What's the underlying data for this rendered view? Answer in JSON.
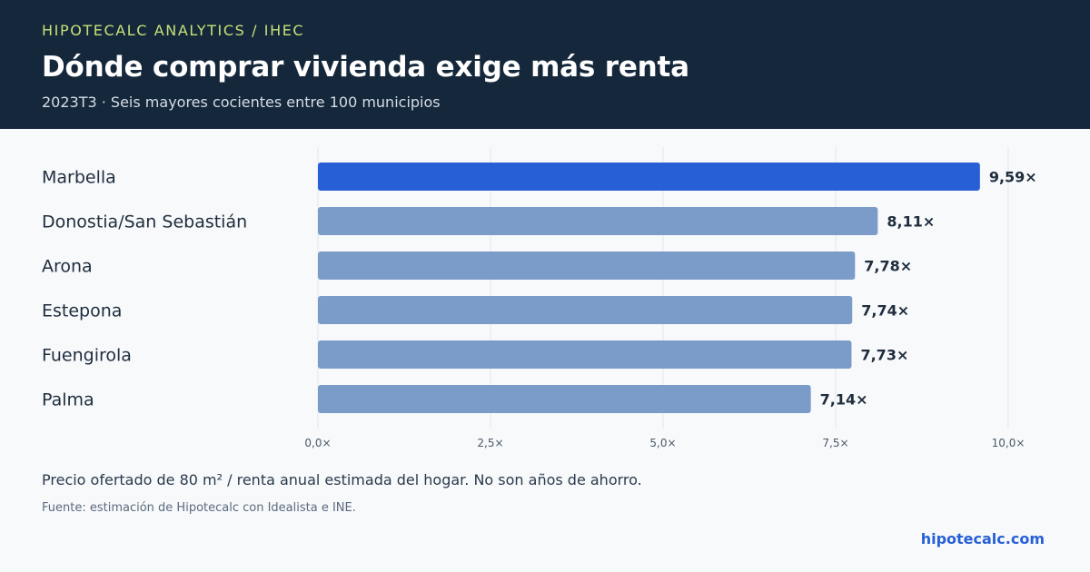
{
  "header": {
    "kicker": "HIPOTECALC ANALYTICS / IHEC",
    "title": "Dónde comprar vivienda exige más renta",
    "subtitle": "2023T3 · Seis mayores cocientes entre 100 municipios"
  },
  "footer": {
    "note": "Precio ofertado de 80 m² / renta anual estimada del hogar. No son años de ahorro.",
    "source": "Fuente: estimación de Hipotecalc con Idealista e INE.",
    "brand": "hipotecalc.com"
  },
  "colors": {
    "highlight": "#2760d6",
    "bar": "#7b9bc9",
    "grid": "#e3e8ee",
    "header_bg": "#15283b",
    "kicker": "#c7e07a"
  },
  "chart_data": {
    "type": "bar",
    "orientation": "horizontal",
    "categories": [
      "Marbella",
      "Donostia/San Sebastián",
      "Arona",
      "Estepona",
      "Fuengirola",
      "Palma"
    ],
    "values": [
      9.59,
      8.11,
      7.78,
      7.74,
      7.73,
      7.14
    ],
    "value_labels": [
      "9,59×",
      "8,11×",
      "7,78×",
      "7,74×",
      "7,73×",
      "7,14×"
    ],
    "highlight_index": 0,
    "xlim": [
      0,
      10
    ],
    "xticks": [
      0,
      2.5,
      5,
      7.5,
      10
    ],
    "xtick_labels": [
      "0,0×",
      "2,5×",
      "5,0×",
      "7,5×",
      "10,0×"
    ],
    "grid": true
  }
}
